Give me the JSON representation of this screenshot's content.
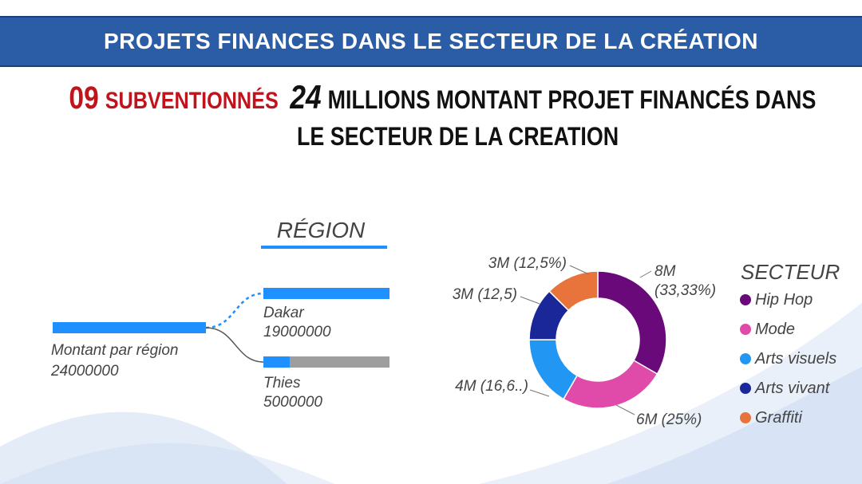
{
  "banner": {
    "title": "PROJETS FINANCES DANS LE SECTEUR DE LA CRÉATION"
  },
  "headline": {
    "count": "09",
    "count_label": "SUBVENTIONNÉS",
    "amount": "24",
    "line1_rest": "MILLIONS MONTANT PROJET FINANCÉS DANS",
    "line2": "LE SECTEUR DE LA CREATION"
  },
  "colors": {
    "banner": "#2b5ca6",
    "accent_red": "#c0141c",
    "bar_blue": "#1e90ff",
    "bar_gray": "#9e9e9e"
  },
  "chart_data": [
    {
      "type": "bar",
      "title": "RÉGION",
      "root": {
        "label": "Montant par région",
        "value": 24000000
      },
      "categories": [
        "Dakar",
        "Thies"
      ],
      "values": [
        19000000,
        5000000
      ],
      "value_labels": [
        "19000000",
        "5000000"
      ],
      "root_value_label": "24000000"
    },
    {
      "type": "pie",
      "title": "SECTEUR",
      "donut": true,
      "categories": [
        "Hip Hop",
        "Mode",
        "Arts visuels",
        "Arts vivant",
        "Graffiti"
      ],
      "values": [
        8,
        6,
        4,
        3,
        3
      ],
      "labels": [
        "8M\n(33,33%)",
        "6M (25%)",
        "4M (16,6..)",
        "3M (12,5)",
        "3M (12,5%)"
      ],
      "colors": [
        "#6a0a7a",
        "#e04aa8",
        "#2196f3",
        "#1a2799",
        "#e8743b"
      ],
      "legend": "right"
    }
  ]
}
